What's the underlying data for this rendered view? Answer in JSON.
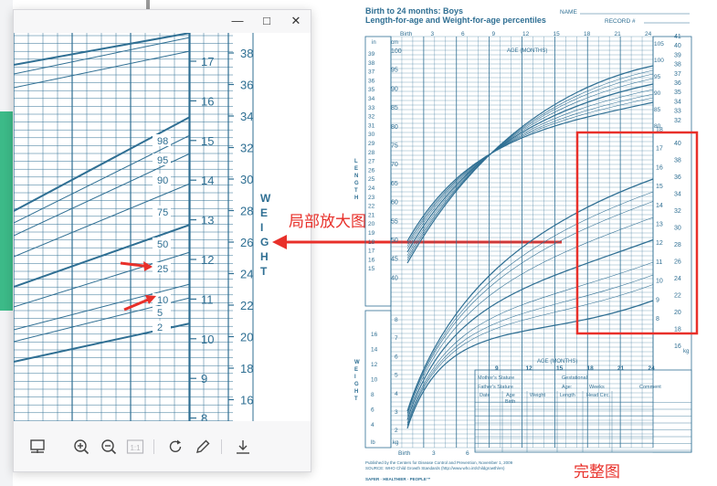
{
  "window": {
    "minimize_glyph": "—",
    "maximize_glyph": "□",
    "close_glyph": "✕"
  },
  "toolbar": {
    "items": [
      {
        "icon": "layout-icon"
      },
      {
        "icon": "zoom-in-icon"
      },
      {
        "icon": "zoom-out-icon"
      },
      {
        "icon": "actual-size-icon",
        "label": "1:1"
      },
      {
        "icon": "rotate-icon"
      },
      {
        "icon": "edit-icon"
      },
      {
        "icon": "download-icon"
      }
    ]
  },
  "zoomed_chart": {
    "weight_kg_ticks": [
      "17",
      "16",
      "15",
      "14",
      "13",
      "12",
      "11",
      "10",
      "9",
      "8"
    ],
    "weight_lb_ticks": [
      "38",
      "36",
      "34",
      "32",
      "30",
      "28",
      "26",
      "24",
      "22",
      "20",
      "18",
      "16"
    ],
    "percentile_labels": [
      "98",
      "95",
      "90",
      "75",
      "50",
      "25",
      "10",
      "5",
      "2"
    ],
    "weight_axis_letters": [
      "W",
      "E",
      "I",
      "G",
      "H",
      "T"
    ]
  },
  "full_chart": {
    "title_line1": "Birth to 24 months: Boys",
    "title_line2": "Length-for-age and Weight-for-age percentiles",
    "name_label": "NAME",
    "record_label": "RECORD #",
    "top_axis": [
      "Birth",
      "3",
      "6",
      "9",
      "12",
      "15",
      "18",
      "21",
      "24"
    ],
    "age_label": "AGE (MONTHS)",
    "in_label": "in",
    "cm_label": "cm",
    "length_letters": [
      "L",
      "E",
      "N",
      "G",
      "T",
      "H"
    ],
    "weight_letters": [
      "W",
      "E",
      "I",
      "G",
      "H",
      "T"
    ],
    "length_in_ticks": [
      "39",
      "38",
      "37",
      "36",
      "35",
      "34",
      "33",
      "32",
      "31",
      "30",
      "29",
      "28",
      "27",
      "26",
      "25",
      "24",
      "23",
      "22",
      "21",
      "20",
      "19",
      "18",
      "17",
      "16",
      "15"
    ],
    "length_cm_ticks": [
      "100",
      "95",
      "90",
      "85",
      "80",
      "75",
      "70",
      "65",
      "60",
      "55",
      "50",
      "45",
      "40"
    ],
    "right_in_ticks": [
      "41",
      "40",
      "39",
      "38",
      "37",
      "36",
      "35",
      "34",
      "33",
      "32"
    ],
    "right_cm_ticks": [
      "105",
      "100",
      "95",
      "90",
      "85",
      "80"
    ],
    "right_kg_ticks": [
      "18",
      "17",
      "16",
      "15",
      "14",
      "13",
      "12",
      "11",
      "10",
      "9",
      "8"
    ],
    "right_lb_ticks": [
      "40",
      "38",
      "36",
      "34",
      "32",
      "30",
      "28",
      "26",
      "24",
      "22",
      "20",
      "18",
      "16"
    ],
    "lower_lb_ticks": [
      "16",
      "14",
      "12",
      "10",
      "8",
      "6",
      "4"
    ],
    "lower_kg_ticks": [
      "8",
      "7",
      "6",
      "5",
      "4",
      "3",
      "2"
    ],
    "bottom_axis": [
      "Birth",
      "3",
      "6"
    ],
    "age_axis_low": [
      "9",
      "12",
      "15",
      "18",
      "21",
      "24"
    ],
    "kg_label": "kg",
    "lb_label": "lb",
    "table": {
      "mothers_stature": "Mother's Stature",
      "fathers_stature": "Father's Stature",
      "gestational": "Gestational",
      "age": "Age:",
      "weeks": "Weeks",
      "comment": "Comment",
      "cols": [
        "Date",
        "Age",
        "Weight",
        "Length",
        "Head Circ."
      ],
      "birth": "Birth"
    },
    "footer1": "Published by the Centers for Disease Control and Prevention, November 1, 2009",
    "footer2": "SOURCE: WHO Child Growth Standards (http://www.who.int/childgrowth/en)",
    "footer3": "SAFER · HEALTHIER · PEOPLE™"
  },
  "annotations": {
    "zoom_label": "局部放大图",
    "full_label": "完整图"
  },
  "colors": {
    "chart_blue": "#2f6f93",
    "annotation_red": "#e8302a",
    "green_accent": "#3cba88"
  }
}
